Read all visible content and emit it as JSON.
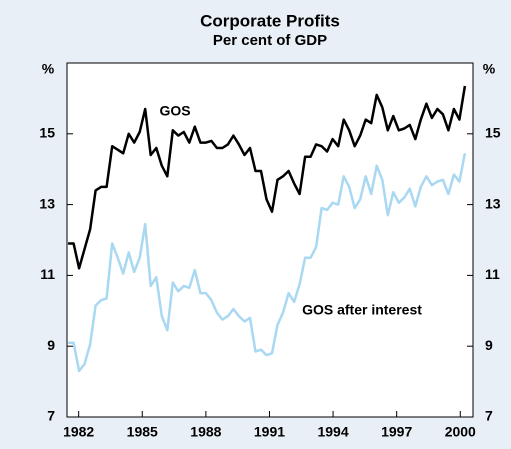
{
  "chart_data": {
    "type": "line",
    "title": "Corporate Profits",
    "subtitle": "Per cent of GDP",
    "ylabel": "%",
    "y2label": "%",
    "x": [
      1981.5,
      1981.76,
      1982.02,
      1982.28,
      1982.54,
      1982.8,
      1983.06,
      1983.32,
      1983.58,
      1983.84,
      1984.1,
      1984.36,
      1984.62,
      1984.88,
      1985.14,
      1985.4,
      1985.66,
      1985.92,
      1986.18,
      1986.44,
      1986.7,
      1986.96,
      1987.22,
      1987.48,
      1987.74,
      1988.0,
      1988.26,
      1988.52,
      1988.78,
      1989.04,
      1989.3,
      1989.56,
      1989.82,
      1990.08,
      1990.34,
      1990.6,
      1990.86,
      1991.12,
      1991.38,
      1991.64,
      1991.9,
      1992.16,
      1992.42,
      1992.68,
      1992.94,
      1993.2,
      1993.46,
      1993.72,
      1993.98,
      1994.24,
      1994.5,
      1994.76,
      1995.02,
      1995.28,
      1995.54,
      1995.8,
      1996.06,
      1996.32,
      1996.58,
      1996.84,
      1997.1,
      1997.36,
      1997.62,
      1997.88,
      1998.14,
      1998.4,
      1998.66,
      1998.92,
      1999.18,
      1999.44,
      1999.7,
      1999.96,
      2000.22
    ],
    "series": [
      {
        "name": "GOS",
        "color": "#000000",
        "values": [
          11.9,
          11.9,
          11.2,
          11.75,
          12.3,
          13.4,
          13.5,
          13.5,
          14.65,
          14.55,
          14.45,
          15.0,
          14.75,
          15.05,
          15.7,
          14.4,
          14.6,
          14.1,
          13.8,
          15.1,
          14.95,
          15.05,
          14.75,
          15.2,
          14.75,
          14.75,
          14.8,
          14.6,
          14.6,
          14.7,
          14.95,
          14.7,
          14.4,
          14.6,
          13.95,
          13.95,
          13.15,
          12.8,
          13.7,
          13.8,
          13.95,
          13.6,
          13.3,
          14.35,
          14.35,
          14.7,
          14.65,
          14.5,
          14.85,
          14.65,
          15.4,
          15.1,
          14.65,
          14.95,
          15.4,
          15.3,
          16.1,
          15.75,
          15.1,
          15.5,
          15.1,
          15.15,
          15.25,
          14.85,
          15.4,
          15.85,
          15.45,
          15.7,
          15.55,
          15.1,
          15.7,
          15.4,
          16.35
        ]
      },
      {
        "name": "GOS after interest",
        "color": "#a9d8f2",
        "values": [
          9.1,
          9.1,
          8.3,
          8.5,
          9.05,
          10.15,
          10.3,
          10.35,
          11.9,
          11.5,
          11.05,
          11.65,
          11.1,
          11.5,
          12.45,
          10.7,
          10.95,
          9.85,
          9.45,
          10.8,
          10.55,
          10.7,
          10.65,
          11.15,
          10.5,
          10.5,
          10.3,
          9.95,
          9.75,
          9.85,
          10.05,
          9.85,
          9.7,
          9.8,
          8.85,
          8.9,
          8.75,
          8.8,
          9.6,
          9.95,
          10.5,
          10.25,
          10.75,
          11.5,
          11.5,
          11.8,
          12.9,
          12.85,
          13.05,
          13.0,
          13.8,
          13.5,
          12.9,
          13.15,
          13.8,
          13.3,
          14.1,
          13.7,
          12.7,
          13.35,
          13.05,
          13.2,
          13.45,
          12.95,
          13.5,
          13.8,
          13.55,
          13.65,
          13.7,
          13.3,
          13.85,
          13.65,
          14.45
        ]
      }
    ],
    "xlim": [
      1981.45,
      2000.6
    ],
    "xticks": [
      1982,
      1985,
      1988,
      1991,
      1994,
      1997,
      2000
    ],
    "ylim": [
      7,
      17
    ],
    "yticks": [
      7,
      9,
      11,
      13,
      15
    ],
    "y2lim": [
      7,
      17
    ],
    "y2ticks": [
      7,
      9,
      11,
      13,
      15
    ]
  }
}
